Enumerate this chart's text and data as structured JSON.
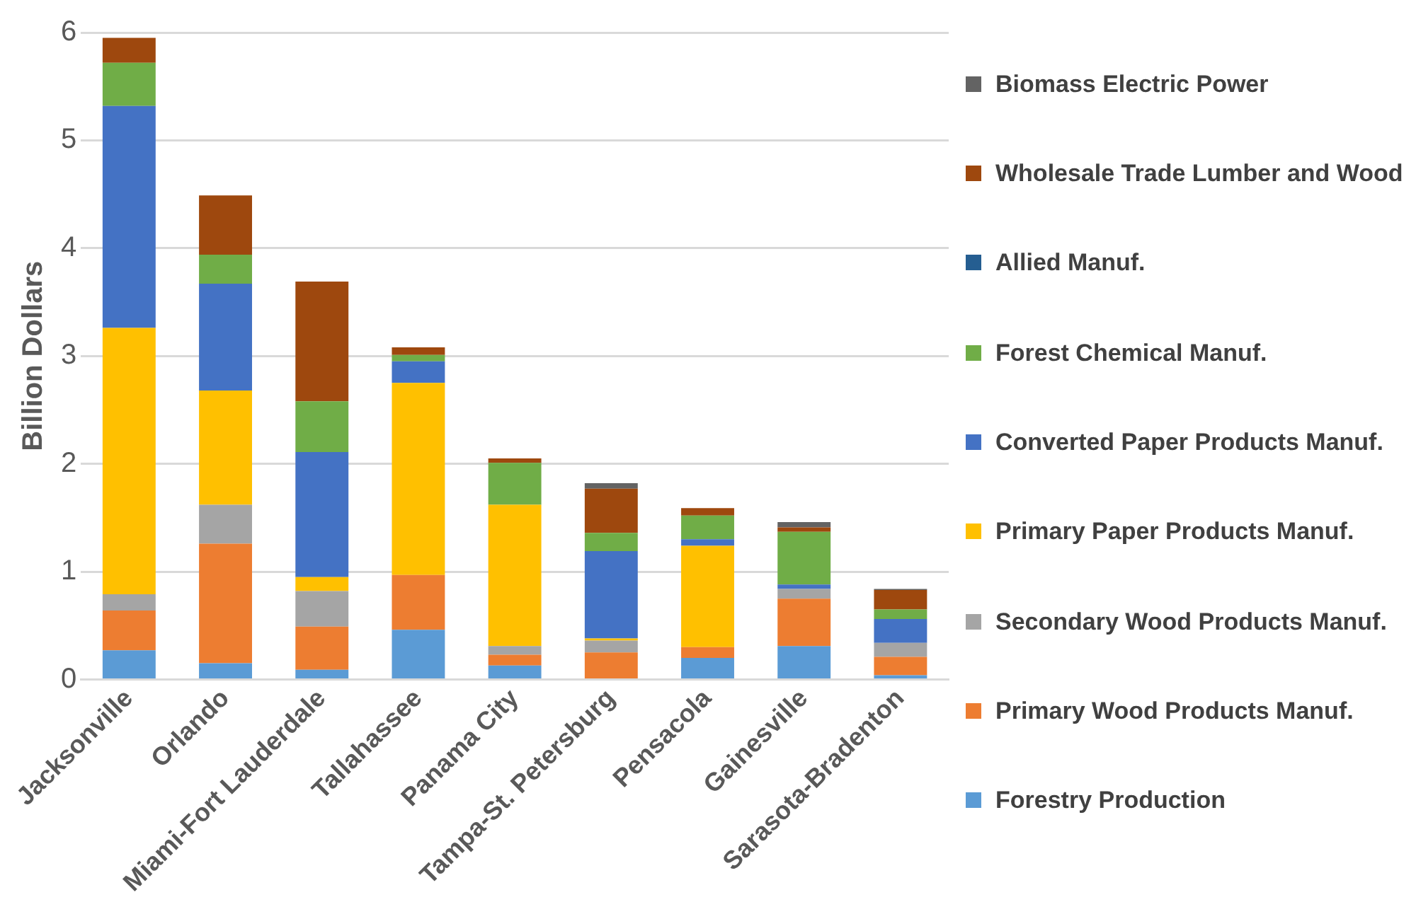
{
  "chart_data": {
    "type": "bar",
    "stacked": true,
    "ylabel": "Billion Dollars",
    "categories": [
      "Jacksonville",
      "Orlando",
      "Miami-Fort Lauderdale",
      "Tallahassee",
      "Panama City",
      "Tampa-St. Petersburg",
      "Pensacola",
      "Gainesville",
      "Sarasota-Bradenton"
    ],
    "series": [
      {
        "name": "Forestry Production",
        "color": "#5b9bd5",
        "values": [
          0.27,
          0.15,
          0.09,
          0.46,
          0.13,
          0,
          0.2,
          0.31,
          0.04
        ]
      },
      {
        "name": "Primary Wood Products Manuf.",
        "color": "#ed7d31",
        "values": [
          0.37,
          1.11,
          0.4,
          0.51,
          0.1,
          0.25,
          0.1,
          0.44,
          0.17
        ]
      },
      {
        "name": "Secondary Wood Products Manuf.",
        "color": "#a5a5a5",
        "values": [
          0.15,
          0.36,
          0.33,
          0,
          0.08,
          0.11,
          null,
          0.09,
          0.13
        ]
      },
      {
        "name": "Primary Paper Products Manuf.",
        "color": "#ffc000",
        "values": [
          2.47,
          1.06,
          0.13,
          1.78,
          1.31,
          0.02,
          0.94,
          0,
          0
        ]
      },
      {
        "name": "Converted Paper Products Manuf.",
        "color": "#4472c4",
        "values": [
          2.06,
          0.99,
          1.16,
          0.2,
          0,
          0.81,
          0.06,
          0.04,
          0.22
        ]
      },
      {
        "name": "Forest Chemical Manuf.",
        "color": "#70ad47",
        "values": [
          0.4,
          0.27,
          0.47,
          0.06,
          0.39,
          0.17,
          0.22,
          0.49,
          0.09
        ]
      },
      {
        "name": "Allied Manuf.",
        "color": "#255e91",
        "values": [
          0,
          0,
          0,
          0,
          0,
          0,
          0,
          0,
          0
        ]
      },
      {
        "name": "Wholesale Trade Lumber and Wood",
        "color": "#9e480e",
        "values": [
          0.23,
          0.55,
          1.11,
          0.07,
          0.04,
          0.41,
          0.07,
          0.04,
          0.18
        ]
      },
      {
        "name": "Biomass Electric Power",
        "color": "#636363",
        "values": [
          0,
          0,
          0,
          0,
          0,
          0.05,
          0,
          0.05,
          0.01
        ]
      }
    ],
    "ylim": [
      0,
      6
    ],
    "yticks": [
      0,
      1,
      2,
      3,
      4,
      5,
      6
    ],
    "grid": "y",
    "legend": "right"
  }
}
